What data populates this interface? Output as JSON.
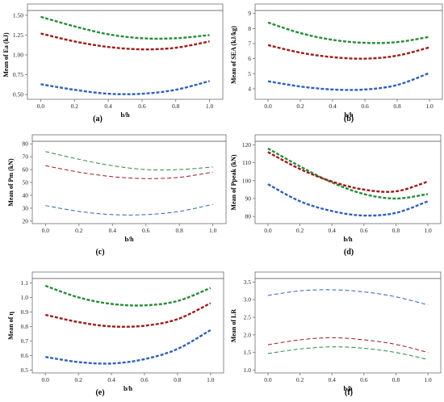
{
  "chart_data": [
    {
      "type": "line",
      "panel_label": "(a)",
      "xlabel": "b/h",
      "ylabel": "Mean of Ea (kJ)",
      "xlim": [
        -0.05,
        1.05
      ],
      "ylim": [
        0.44,
        1.56
      ],
      "xticks": [
        "0.0",
        "0.2",
        "0.4",
        "0.6",
        "0.8",
        "1.0"
      ],
      "yticks": [
        "0.50",
        "0.75",
        "1.00",
        "1.25",
        "1.50"
      ],
      "dash": "heavy",
      "series": [
        {
          "color": "#2a8a3a",
          "x": [
            0,
            0.2,
            0.4,
            0.6,
            0.8,
            1.0
          ],
          "y": [
            1.48,
            1.36,
            1.26,
            1.21,
            1.21,
            1.25
          ]
        },
        {
          "color": "#9b1c1c",
          "x": [
            0,
            0.2,
            0.4,
            0.6,
            0.8,
            1.0
          ],
          "y": [
            1.27,
            1.17,
            1.1,
            1.07,
            1.09,
            1.17
          ]
        },
        {
          "color": "#2f62b8",
          "x": [
            0,
            0.2,
            0.4,
            0.6,
            0.8,
            1.0
          ],
          "y": [
            0.63,
            0.56,
            0.51,
            0.51,
            0.56,
            0.67
          ]
        }
      ]
    },
    {
      "type": "line",
      "panel_label": "(b)",
      "xlabel": "b/h",
      "ylabel": "Mean of SEA (kJ/kg)",
      "xlim": [
        -0.05,
        1.05
      ],
      "ylim": [
        3.3,
        9.2
      ],
      "xticks": [
        "0.0",
        "0.2",
        "0.4",
        "0.6",
        "0.8",
        "1.0"
      ],
      "yticks": [
        "4",
        "5",
        "6",
        "7",
        "8",
        "9"
      ],
      "dash": "heavy",
      "series": [
        {
          "color": "#2a8a3a",
          "x": [
            0,
            0.2,
            0.4,
            0.6,
            0.8,
            1.0
          ],
          "y": [
            8.4,
            7.7,
            7.25,
            7.05,
            7.1,
            7.45
          ]
        },
        {
          "color": "#9b1c1c",
          "x": [
            0,
            0.2,
            0.4,
            0.6,
            0.8,
            1.0
          ],
          "y": [
            6.9,
            6.4,
            6.1,
            6.0,
            6.2,
            6.75
          ]
        },
        {
          "color": "#2f62b8",
          "x": [
            0,
            0.2,
            0.4,
            0.6,
            0.8,
            1.0
          ],
          "y": [
            4.5,
            4.15,
            3.95,
            3.95,
            4.25,
            5.05
          ]
        }
      ]
    },
    {
      "type": "line",
      "panel_label": "(c)",
      "xlabel": "b/h",
      "ylabel": "Mean of Pm (kN)",
      "xlim": [
        -0.05,
        1.05
      ],
      "ylim": [
        18,
        82
      ],
      "xticks": [
        "0.0",
        "0.2",
        "0.4",
        "0.6",
        "0.8",
        "1.0"
      ],
      "yticks": [
        "20",
        "30",
        "40",
        "50",
        "60",
        "70",
        "80"
      ],
      "dash": "light",
      "series": [
        {
          "color": "#2a8a3a",
          "x": [
            0,
            0.2,
            0.4,
            0.6,
            0.8,
            1.0
          ],
          "y": [
            74,
            68,
            63,
            60,
            60,
            62
          ]
        },
        {
          "color": "#9b1c1c",
          "x": [
            0,
            0.2,
            0.4,
            0.6,
            0.8,
            1.0
          ],
          "y": [
            63,
            58,
            54.5,
            53,
            54,
            58
          ]
        },
        {
          "color": "#2f62b8",
          "x": [
            0,
            0.2,
            0.4,
            0.6,
            0.8,
            1.0
          ],
          "y": [
            32,
            27.5,
            25,
            25,
            27.5,
            33
          ]
        }
      ]
    },
    {
      "type": "line",
      "panel_label": "(d)",
      "xlabel": "b/h",
      "ylabel": "Mean of Ppeak (kN)",
      "xlim": [
        -0.05,
        1.05
      ],
      "ylim": [
        76,
        122
      ],
      "xticks": [
        "0.0",
        "0.2",
        "0.4",
        "0.6",
        "0.8",
        "1.0"
      ],
      "yticks": [
        "80",
        "90",
        "100",
        "110",
        "120"
      ],
      "dash": "heavy",
      "series": [
        {
          "color": "#2a8a3a",
          "x": [
            0,
            0.2,
            0.4,
            0.6,
            0.8,
            1.0
          ],
          "y": [
            118,
            108,
            99,
            92.5,
            90,
            92.5
          ]
        },
        {
          "color": "#9b1c1c",
          "x": [
            0,
            0.2,
            0.4,
            0.6,
            0.8,
            1.0
          ],
          "y": [
            116,
            106.5,
            99.5,
            95,
            94,
            99.5
          ]
        },
        {
          "color": "#2f62b8",
          "x": [
            0,
            0.2,
            0.4,
            0.6,
            0.8,
            1.0
          ],
          "y": [
            98,
            88.5,
            83,
            80.5,
            82,
            88.5
          ]
        }
      ]
    },
    {
      "type": "line",
      "panel_label": "(e)",
      "xlabel": "b/h",
      "ylabel": "Mean of η",
      "xlim": [
        -0.05,
        1.05
      ],
      "ylim": [
        0.48,
        1.13
      ],
      "xticks": [
        "0.0",
        "0.2",
        "0.4",
        "0.6",
        "0.8",
        "1.0"
      ],
      "yticks": [
        "0.5",
        "0.6",
        "0.7",
        "0.8",
        "0.9",
        "1.0",
        "1.1"
      ],
      "dash": "heavy",
      "series": [
        {
          "color": "#2a8a3a",
          "x": [
            0,
            0.2,
            0.4,
            0.6,
            0.8,
            1.0
          ],
          "y": [
            1.08,
            1.0,
            0.955,
            0.945,
            0.975,
            1.065
          ]
        },
        {
          "color": "#9b1c1c",
          "x": [
            0,
            0.2,
            0.4,
            0.6,
            0.8,
            1.0
          ],
          "y": [
            0.88,
            0.83,
            0.8,
            0.805,
            0.85,
            0.96
          ]
        },
        {
          "color": "#2f62b8",
          "x": [
            0,
            0.2,
            0.4,
            0.6,
            0.8,
            1.0
          ],
          "y": [
            0.59,
            0.555,
            0.545,
            0.575,
            0.645,
            0.775
          ]
        }
      ]
    },
    {
      "type": "line",
      "panel_label": "(f)",
      "xlabel": "b/h",
      "ylabel": "Mean of LR",
      "xlim": [
        -0.05,
        1.05
      ],
      "ylim": [
        0.92,
        3.6
      ],
      "xticks": [
        "0.0",
        "0.2",
        "0.4",
        "0.6",
        "0.8",
        "1.0"
      ],
      "yticks": [
        "1.0",
        "1.5",
        "2.0",
        "2.5",
        "3.0",
        "3.5"
      ],
      "dash": "light",
      "series": [
        {
          "color": "#2f62b8",
          "x": [
            0,
            0.2,
            0.4,
            0.6,
            0.8,
            1.0
          ],
          "y": [
            3.12,
            3.25,
            3.28,
            3.22,
            3.08,
            2.85
          ]
        },
        {
          "color": "#9b1c1c",
          "x": [
            0,
            0.2,
            0.4,
            0.6,
            0.8,
            1.0
          ],
          "y": [
            1.72,
            1.86,
            1.92,
            1.86,
            1.73,
            1.5
          ]
        },
        {
          "color": "#2a8a3a",
          "x": [
            0,
            0.2,
            0.4,
            0.6,
            0.8,
            1.0
          ],
          "y": [
            1.47,
            1.6,
            1.66,
            1.62,
            1.5,
            1.3
          ]
        }
      ]
    }
  ]
}
